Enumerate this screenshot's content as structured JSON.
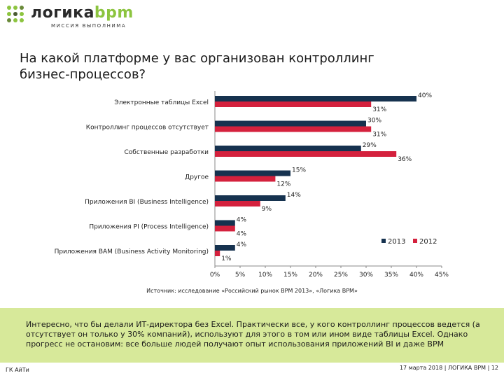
{
  "header": {
    "logo_name_part1": "логика",
    "logo_name_part2": "bpm",
    "logo_tagline": "МИССИЯ ВЫПОЛНИМА"
  },
  "slide": {
    "title_line1": "На какой платформе у вас организован контроллинг",
    "title_line2": "бизнес-процессов?",
    "source": "Источник: исследование «Российский рынок BPM 2013», «Логика BPM»",
    "conclusion": "Интересно, что бы делали ИТ-директора без Excel. Практически все, у кого контроллинг процессов ведется (а отсутствует он только у 30% компаний), используют для этого в том или ином виде таблицы Excel. Однако прогресс не остановим: все больше людей получают опыт использования приложений BI и даже BPM"
  },
  "footer": {
    "left": "ГК АйТи",
    "right": "17 марта 2018  |  ЛОГИКА BPM  |  12"
  },
  "colors": {
    "series_2013": "#16324f",
    "series_2012": "#d4213d",
    "accent_green": "#8cc43f",
    "band": "#d7e99a"
  },
  "chart_data": {
    "type": "bar",
    "orientation": "horizontal",
    "categories": [
      "Электронные таблицы Excel",
      "Контроллинг процессов отсутствует",
      "Собственные разработки",
      "Другое",
      "Приложения BI (Business Intelligence)",
      "Приложения PI (Process Intelligence)",
      "Приложения BAM (Business Activity Monitoring)"
    ],
    "series": [
      {
        "name": "2013",
        "values": [
          40,
          30,
          29,
          15,
          14,
          4,
          4
        ],
        "labels": [
          "40%",
          "30%",
          "29%",
          "15%",
          "14%",
          "4%",
          "4%"
        ]
      },
      {
        "name": "2012",
        "values": [
          31,
          31,
          36,
          12,
          9,
          4,
          1
        ],
        "labels": [
          "31%",
          "31%",
          "36%",
          "12%",
          "9%",
          "4%",
          "1%"
        ]
      }
    ],
    "xlim": [
      0,
      45
    ],
    "xticks": [
      "0%",
      "5%",
      "10%",
      "15%",
      "20%",
      "25%",
      "30%",
      "35%",
      "40%",
      "45%"
    ],
    "legend_position": "right, above last category",
    "grid": false
  }
}
